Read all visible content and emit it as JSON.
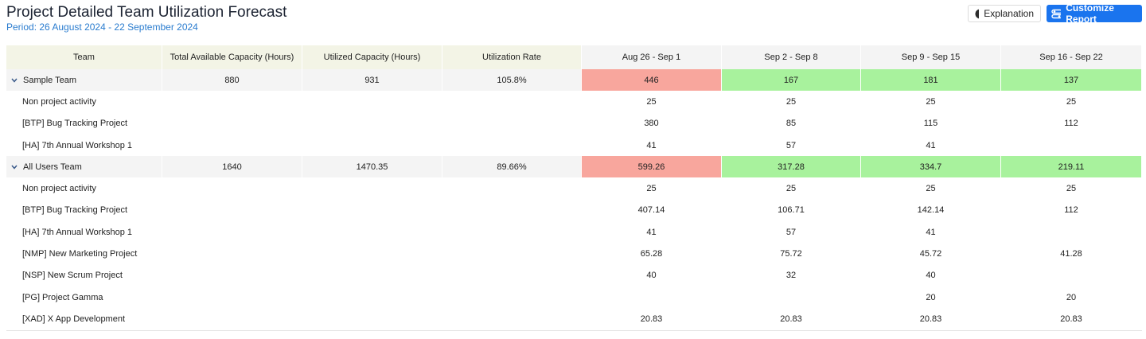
{
  "header": {
    "title": "Project Detailed Team Utilization Forecast",
    "subtitle": "Period: 26 August 2024 - 22 September 2024",
    "buttons": [
      "Explanation",
      "Customize Report"
    ]
  },
  "table": {
    "columns": [
      "Team",
      "Total Available Capacity (Hours)",
      "Utilized Capacity (Hours)",
      "Utilization Rate",
      "Aug 26 - Sep 1",
      "Sep 2 - Sep 8",
      "Sep 9 - Sep 15",
      "Sep 16 - Sep 22"
    ],
    "groups": [
      {
        "team": "Sample Team",
        "total": "880",
        "utilized": "931",
        "rate": "105.8%",
        "weeks": [
          "446",
          "167",
          "181",
          "137"
        ],
        "week_colors": [
          "#f8a69d",
          "#a8f29d",
          "#a8f29d",
          "#a8f29d"
        ],
        "projects": [
          {
            "name": "Non project activity",
            "weeks": [
              "25",
              "25",
              "25",
              "25"
            ]
          },
          {
            "name": "[BTP] Bug Tracking Project",
            "weeks": [
              "380",
              "85",
              "115",
              "112"
            ]
          },
          {
            "name": "[HA] 7th Annual Workshop 1",
            "weeks": [
              "41",
              "57",
              "41",
              null
            ]
          }
        ]
      },
      {
        "team": "All Users Team",
        "total": "1640",
        "utilized": "1470.35",
        "rate": "89.66%",
        "weeks": [
          "599.26",
          "317.28",
          "334.7",
          "219.11"
        ],
        "week_colors": [
          "#f8a69d",
          "#a8f29d",
          "#a8f29d",
          "#a8f29d"
        ],
        "projects": [
          {
            "name": "Non project activity",
            "weeks": [
              "25",
              "25",
              "25",
              "25"
            ]
          },
          {
            "name": "[BTP] Bug Tracking Project",
            "weeks": [
              "407.14",
              "106.71",
              "142.14",
              "112"
            ]
          },
          {
            "name": "[HA] 7th Annual Workshop 1",
            "weeks": [
              "41",
              "57",
              "41",
              null
            ]
          },
          {
            "name": "[NMP] New Marketing Project",
            "weeks": [
              "65.28",
              "75.72",
              "45.72",
              "41.28"
            ]
          },
          {
            "name": "[NSP] New Scrum Project",
            "weeks": [
              "40",
              "32",
              "40",
              null
            ]
          },
          {
            "name": "[PG] Project Gamma",
            "weeks": [
              null,
              null,
              "20",
              "20"
            ]
          },
          {
            "name": "[XAD] X App Development",
            "weeks": [
              "20.83",
              "20.83",
              "20.83",
              "20.83"
            ]
          }
        ]
      }
    ]
  }
}
